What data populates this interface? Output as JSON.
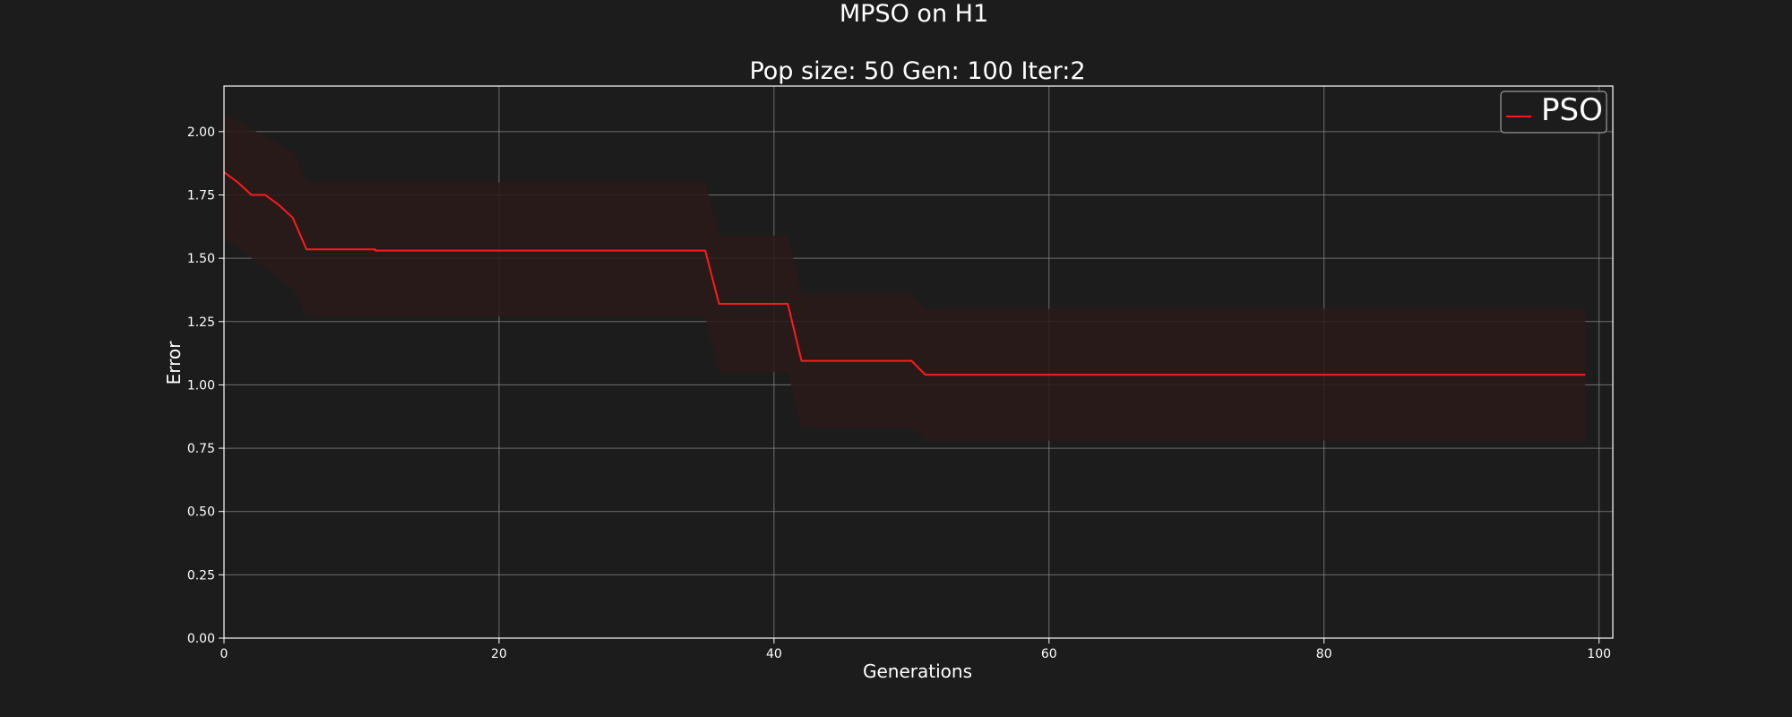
{
  "chart_data": {
    "type": "line",
    "title": "MPSO on H1",
    "subtitle": "Pop size: 50  Gen: 100  Iter:2",
    "xlabel": "Generations",
    "ylabel": "Error",
    "xlim": [
      0,
      101
    ],
    "ylim": [
      0,
      2.18
    ],
    "xticks": [
      0,
      20,
      40,
      60,
      80,
      100
    ],
    "yticks": [
      0.0,
      0.25,
      0.5,
      0.75,
      1.0,
      1.25,
      1.5,
      1.75,
      2.0
    ],
    "ytick_labels": [
      "0.00",
      "0.25",
      "0.50",
      "0.75",
      "1.00",
      "1.25",
      "1.50",
      "1.75",
      "2.00"
    ],
    "grid": true,
    "legend_position": "top-right",
    "colors": {
      "background": "#1c1c1c",
      "line": "#ff1a1a",
      "band": "#2b1a1a",
      "grid": "#8a8a8a",
      "text": "#ffffff"
    },
    "series": [
      {
        "name": "PSO",
        "points": [
          [
            0,
            1.84
          ],
          [
            1,
            1.8
          ],
          [
            2,
            1.75
          ],
          [
            3,
            1.75
          ],
          [
            4,
            1.71
          ],
          [
            5,
            1.66
          ],
          [
            6,
            1.535
          ],
          [
            11,
            1.535
          ],
          [
            11,
            1.53
          ],
          [
            35,
            1.53
          ],
          [
            36,
            1.32
          ],
          [
            41,
            1.32
          ],
          [
            42,
            1.095
          ],
          [
            50,
            1.095
          ],
          [
            51,
            1.04
          ],
          [
            99,
            1.04
          ]
        ],
        "band_upper": [
          [
            0,
            2.07
          ],
          [
            5,
            1.92
          ],
          [
            6,
            1.8
          ],
          [
            35,
            1.8
          ],
          [
            36,
            1.59
          ],
          [
            41,
            1.59
          ],
          [
            42,
            1.36
          ],
          [
            50,
            1.36
          ],
          [
            51,
            1.3
          ],
          [
            99,
            1.3
          ]
        ],
        "band_lower": [
          [
            0,
            1.58
          ],
          [
            5,
            1.38
          ],
          [
            6,
            1.27
          ],
          [
            35,
            1.27
          ],
          [
            36,
            1.05
          ],
          [
            41,
            1.05
          ],
          [
            42,
            0.83
          ],
          [
            50,
            0.83
          ],
          [
            51,
            0.78
          ],
          [
            99,
            0.78
          ]
        ]
      }
    ]
  }
}
